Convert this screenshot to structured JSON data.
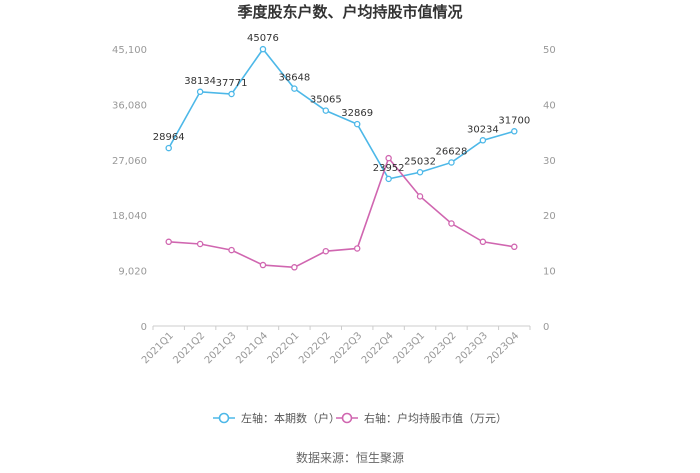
{
  "chart_data": {
    "type": "line",
    "title": "季度股东户数、户均持股市值情况",
    "categories": [
      "2021Q1",
      "2021Q2",
      "2021Q3",
      "2021Q4",
      "2022Q1",
      "2022Q2",
      "2022Q3",
      "2022Q4",
      "2023Q1",
      "2023Q2",
      "2023Q3",
      "2023Q4"
    ],
    "left_axis": {
      "ylim": [
        0,
        45100
      ],
      "ticks": [
        "0",
        "9,020",
        "18,040",
        "27,060",
        "36,080",
        "45,100"
      ]
    },
    "right_axis": {
      "ylim": [
        0,
        50
      ],
      "ticks": [
        "0",
        "10",
        "20",
        "30",
        "40",
        "50"
      ]
    },
    "series": [
      {
        "name": "左轴：本期数（户）",
        "axis": "left",
        "color": "#4db8e8",
        "values": [
          28964,
          38134,
          37771,
          45076,
          38648,
          35065,
          32869,
          23952,
          25032,
          26628,
          30234,
          31700
        ],
        "labels": [
          "28964",
          "38134",
          "37771",
          "45076",
          "38648",
          "35065",
          "32869",
          "23952",
          "25032",
          "26628",
          "30234",
          "31700"
        ]
      },
      {
        "name": "右轴：户均持股市值（万元）",
        "axis": "right",
        "color": "#d066b0",
        "values": [
          15.2,
          14.8,
          13.7,
          11.0,
          10.6,
          13.5,
          14.0,
          30.3,
          23.4,
          18.5,
          15.2,
          14.3
        ]
      }
    ],
    "grid": false,
    "legend_position": "bottom"
  },
  "source": "数据来源：恒生聚源"
}
